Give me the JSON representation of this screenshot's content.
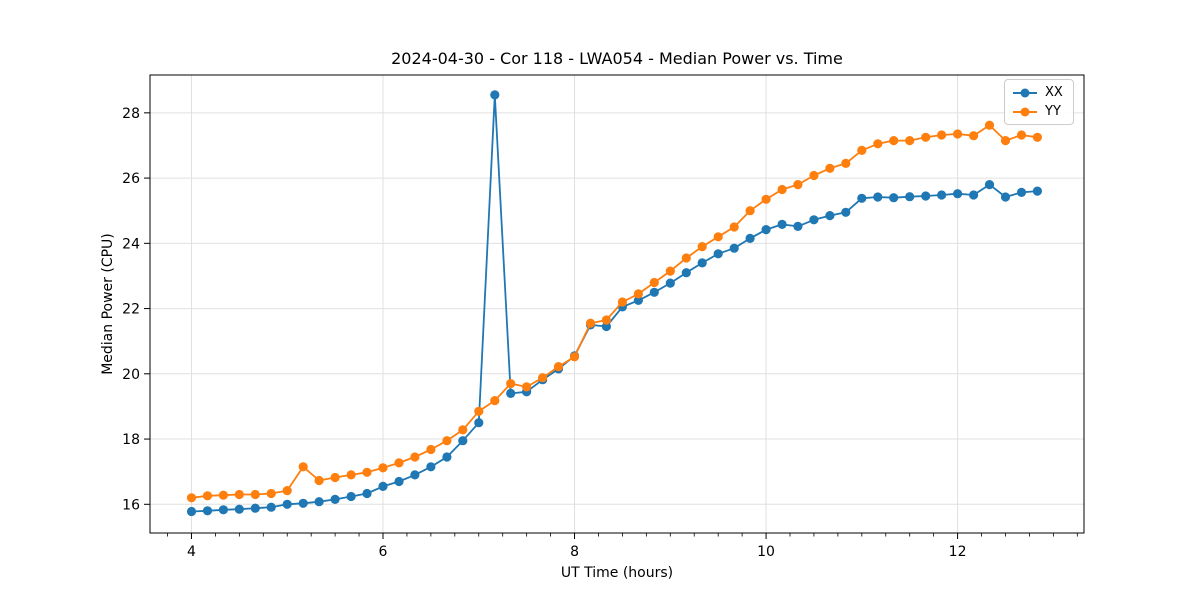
{
  "chart_data": {
    "type": "line",
    "title": "2024-04-30 - Cor 118 - LWA054 - Median Power vs. Time",
    "xlabel": "UT Time (hours)",
    "ylabel": "Median Power (CPU)",
    "xlim": [
      3.567,
      13.32
    ],
    "ylim": [
      15.12,
      29.16
    ],
    "x_ticks": [
      4,
      6,
      8,
      10,
      12
    ],
    "x_minor_tick_step": 0.25,
    "y_ticks": [
      16,
      18,
      20,
      22,
      24,
      26,
      28
    ],
    "grid": true,
    "legend_position": "upper right",
    "background_color": "#ffffff",
    "grid_color": "#e0e0e0",
    "x": [
      4.0,
      4.167,
      4.333,
      4.5,
      4.667,
      4.833,
      5.0,
      5.167,
      5.333,
      5.5,
      5.667,
      5.833,
      6.0,
      6.167,
      6.333,
      6.5,
      6.667,
      6.833,
      7.0,
      7.167,
      7.333,
      7.5,
      7.667,
      7.833,
      8.0,
      8.167,
      8.333,
      8.5,
      8.667,
      8.833,
      9.0,
      9.167,
      9.333,
      9.5,
      9.667,
      9.833,
      10.0,
      10.167,
      10.333,
      10.5,
      10.667,
      10.833,
      11.0,
      11.167,
      11.333,
      11.5,
      11.667,
      11.833,
      12.0,
      12.167,
      12.333,
      12.5,
      12.667,
      12.833
    ],
    "series": [
      {
        "name": "XX",
        "color": "#1f77b4",
        "values": [
          15.78,
          15.8,
          15.83,
          15.85,
          15.88,
          15.91,
          16.0,
          16.03,
          16.08,
          16.15,
          16.24,
          16.33,
          16.55,
          16.7,
          16.9,
          17.15,
          17.45,
          17.95,
          18.5,
          28.55,
          19.4,
          19.45,
          19.82,
          20.15,
          20.55,
          21.5,
          21.45,
          22.05,
          22.25,
          22.5,
          22.78,
          23.1,
          23.4,
          23.68,
          23.85,
          24.15,
          24.42,
          24.58,
          24.52,
          24.72,
          24.85,
          24.95,
          25.38,
          25.42,
          25.4,
          25.43,
          25.45,
          25.48,
          25.52,
          25.48,
          25.8,
          25.42,
          25.56,
          25.6
        ]
      },
      {
        "name": "YY",
        "color": "#ff7f0e",
        "values": [
          16.2,
          16.26,
          16.28,
          16.3,
          16.3,
          16.33,
          16.42,
          17.15,
          16.73,
          16.82,
          16.9,
          16.98,
          17.12,
          17.27,
          17.45,
          17.68,
          17.95,
          18.28,
          18.85,
          19.18,
          19.7,
          19.6,
          19.88,
          20.22,
          20.52,
          21.55,
          21.65,
          22.2,
          22.45,
          22.8,
          23.15,
          23.55,
          23.9,
          24.2,
          24.5,
          25.0,
          25.35,
          25.65,
          25.8,
          26.08,
          26.3,
          26.45,
          26.85,
          27.05,
          27.15,
          27.15,
          27.25,
          27.32,
          27.35,
          27.3,
          27.62,
          27.15,
          27.32,
          27.25
        ]
      }
    ]
  }
}
